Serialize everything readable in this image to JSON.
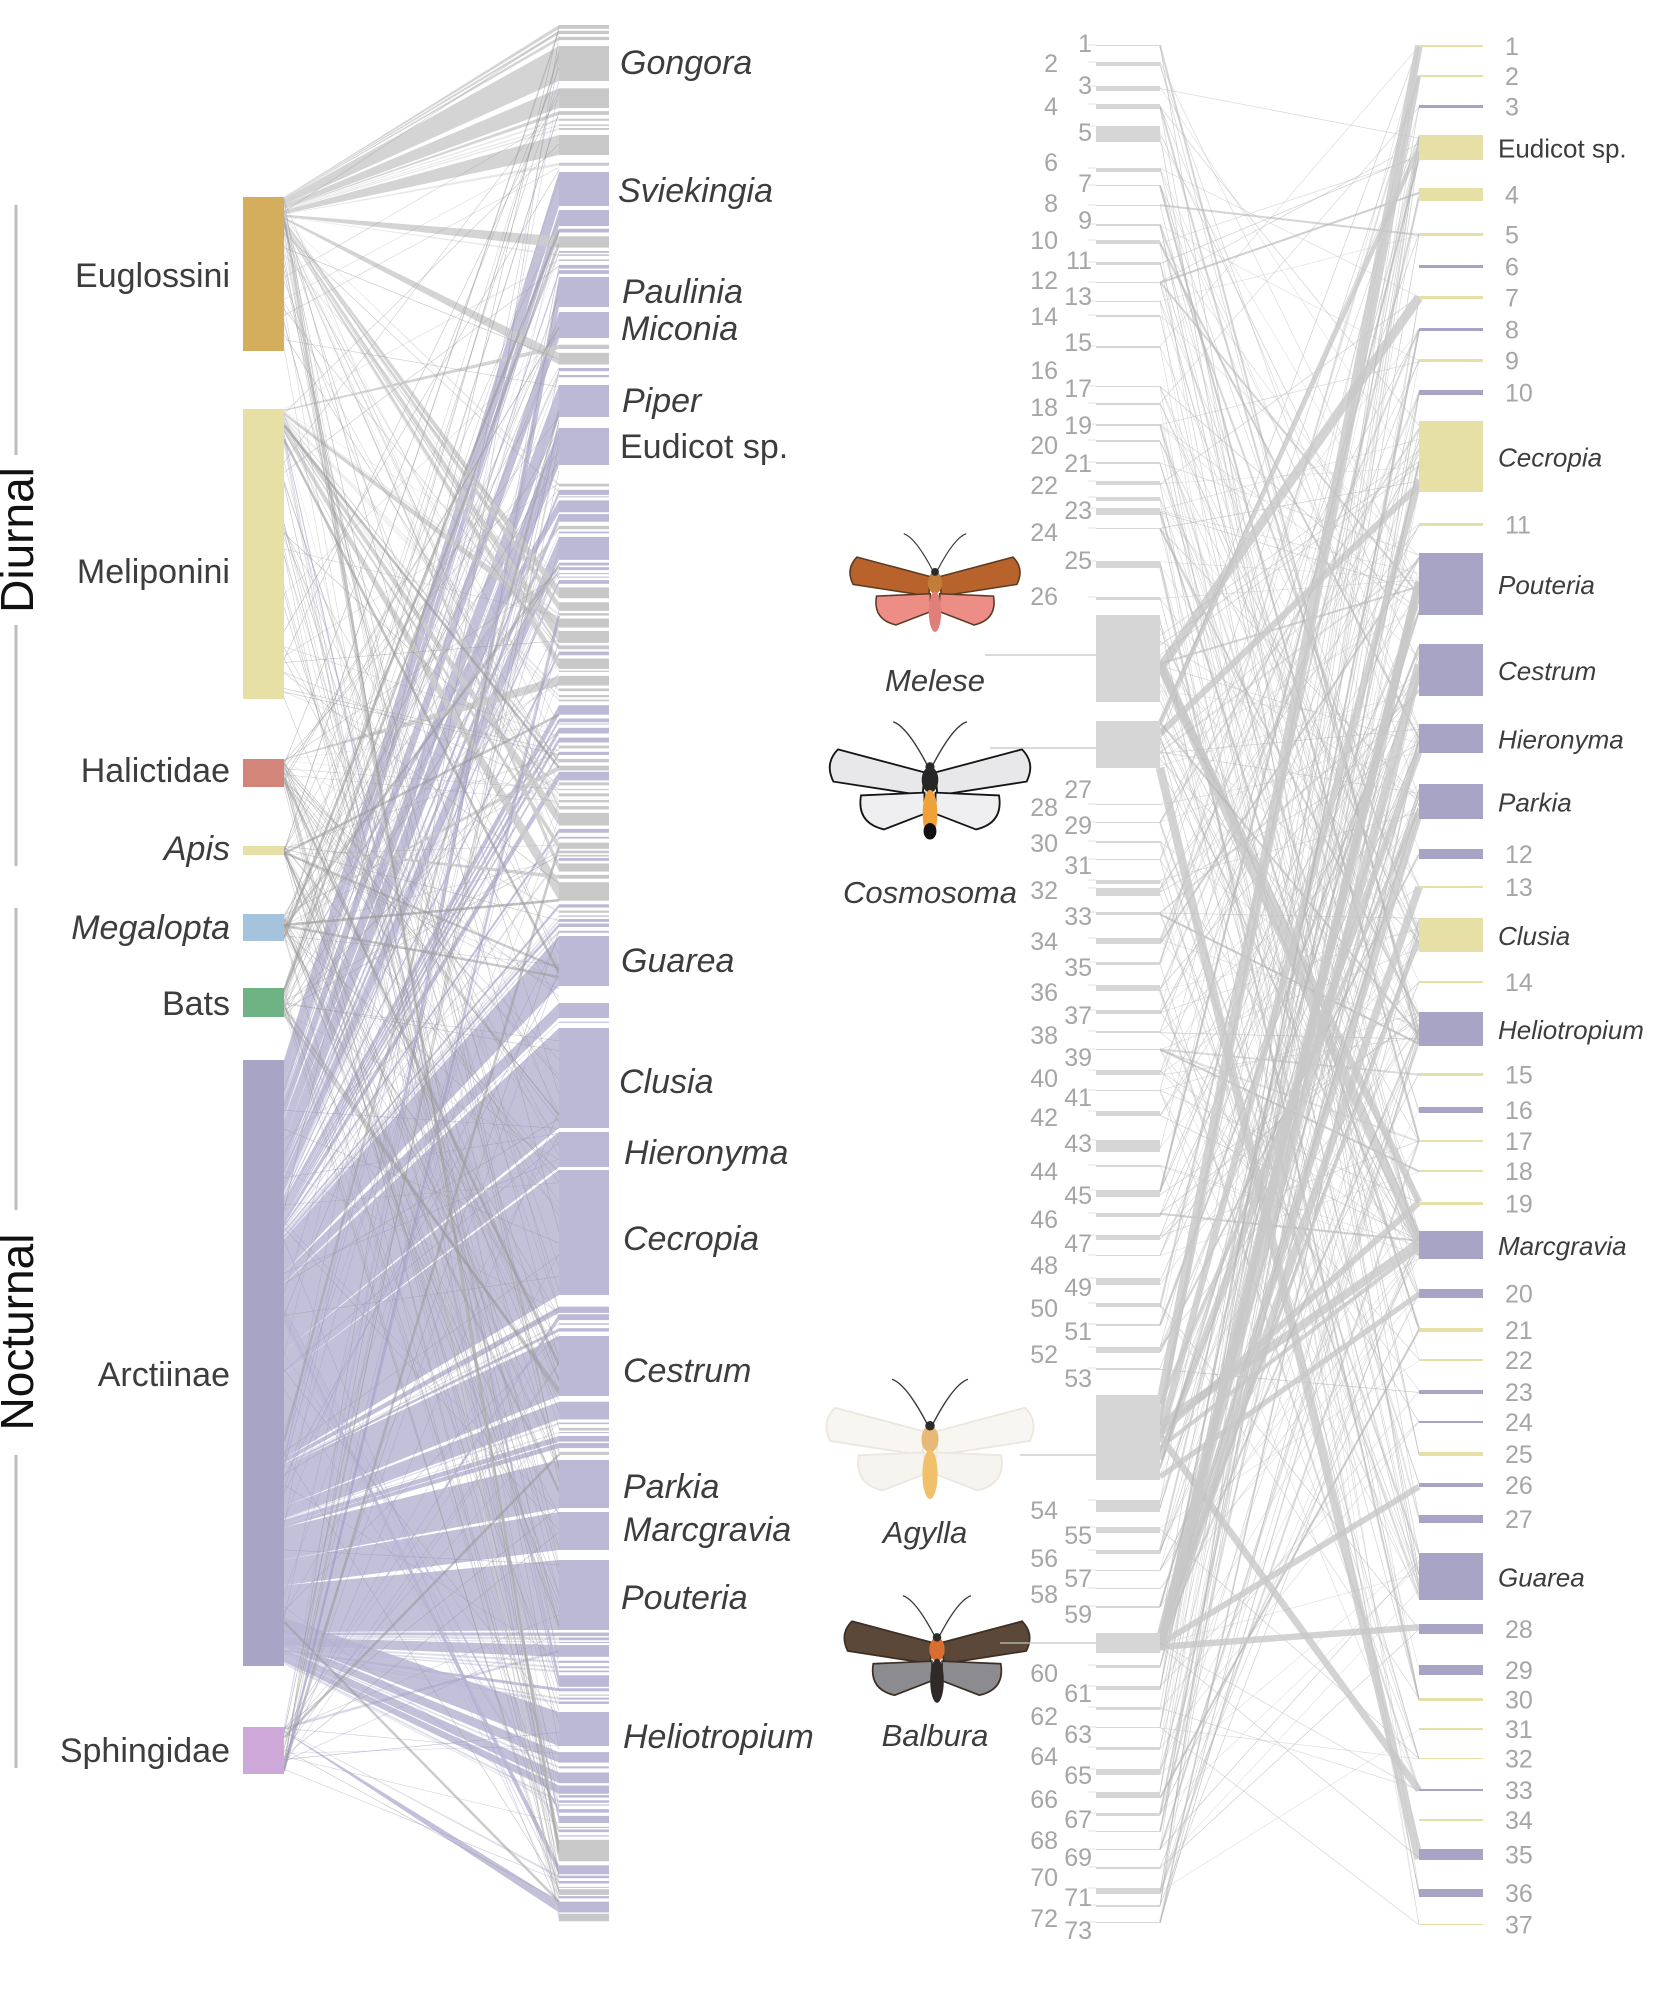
{
  "colors": {
    "euglossini": "#d4ae5c",
    "meliponini": "#e6dfa6",
    "halictidae": "#d4857a",
    "apis": "#e6dfa6",
    "megalopta": "#a5c3dc",
    "bats": "#6fb284",
    "arctiinae": "#a8a4c6",
    "sphingidae": "#cfa8da",
    "link_gray": "#cccccc",
    "link_purple": "#b8b5d3",
    "plant_gray": "#c8c8c8",
    "plant_purple": "#bcb9d6",
    "moth_node": "#d6d6d6",
    "label_dark": "#3d3d3d",
    "number_gray": "#a6a6a6"
  },
  "left_network": {
    "activity_groups": [
      {
        "label": "Diurnal",
        "members": [
          "Euglossini",
          "Meliponini",
          "Halictidae",
          "Apis"
        ]
      },
      {
        "label": "Nocturnal",
        "members": [
          "Megalopta",
          "Bats",
          "Arctiinae",
          "Sphingidae"
        ]
      }
    ],
    "pollinator_groups": [
      {
        "label": "Euglossini",
        "italic": false,
        "color_key": "euglossini",
        "relative_size": 0.095
      },
      {
        "label": "Meliponini",
        "italic": false,
        "color_key": "meliponini",
        "relative_size": 0.18
      },
      {
        "label": "Halictidae",
        "italic": false,
        "color_key": "halictidae",
        "relative_size": 0.014
      },
      {
        "label": "Apis",
        "italic": true,
        "color_key": "apis",
        "relative_size": 0.004
      },
      {
        "label": "Megalopta",
        "italic": true,
        "color_key": "megalopta",
        "relative_size": 0.013
      },
      {
        "label": "Bats",
        "italic": false,
        "color_key": "bats",
        "relative_size": 0.013
      },
      {
        "label": "Arctiinae",
        "italic": false,
        "color_key": "arctiinae",
        "relative_size": 0.295
      },
      {
        "label": "Sphingidae",
        "italic": false,
        "color_key": "sphingidae",
        "relative_size": 0.022
      }
    ],
    "plant_labels": [
      {
        "label": "Gongora",
        "italic": true
      },
      {
        "label": "Sviekingia",
        "italic": true
      },
      {
        "label": "Paulinia",
        "italic": true
      },
      {
        "label": "Miconia",
        "italic": true
      },
      {
        "label": "Piper",
        "italic": true
      },
      {
        "label": "Eudicot sp.",
        "italic": false
      },
      {
        "label": "Guarea",
        "italic": true
      },
      {
        "label": "Clusia",
        "italic": true
      },
      {
        "label": "Hieronyma",
        "italic": true
      },
      {
        "label": "Cecropia",
        "italic": true
      },
      {
        "label": "Cestrum",
        "italic": true
      },
      {
        "label": "Parkia",
        "italic": true
      },
      {
        "label": "Marcgravia",
        "italic": true
      },
      {
        "label": "Pouteria",
        "italic": true
      },
      {
        "label": "Heliotropium",
        "italic": true
      }
    ]
  },
  "right_network": {
    "moth_images": [
      {
        "label": "Melese",
        "italic": true
      },
      {
        "label": "Cosmosoma",
        "italic": true
      },
      {
        "label": "Agylla",
        "italic": true
      },
      {
        "label": "Balbura",
        "italic": true
      }
    ],
    "moth_numbered_count": 73,
    "plant_nodes": [
      {
        "label": "1",
        "named": false,
        "color": "yellow",
        "weight": 1
      },
      {
        "label": "2",
        "named": false,
        "color": "yellow",
        "weight": 1
      },
      {
        "label": "3",
        "named": false,
        "color": "purple",
        "weight": 2
      },
      {
        "label": "Eudicot sp.",
        "named": true,
        "italic": false,
        "color": "yellow",
        "weight": 24
      },
      {
        "label": "4",
        "named": false,
        "color": "yellow",
        "weight": 12
      },
      {
        "label": "5",
        "named": false,
        "color": "yellow",
        "weight": 2
      },
      {
        "label": "6",
        "named": false,
        "color": "purple",
        "weight": 2
      },
      {
        "label": "7",
        "named": false,
        "color": "yellow",
        "weight": 2
      },
      {
        "label": "8",
        "named": false,
        "color": "purple",
        "weight": 2
      },
      {
        "label": "9",
        "named": false,
        "color": "yellow",
        "weight": 2
      },
      {
        "label": "10",
        "named": false,
        "color": "purple",
        "weight": 4
      },
      {
        "label": "Cecropia",
        "named": true,
        "italic": true,
        "color": "yellow",
        "weight": 70
      },
      {
        "label": "11",
        "named": false,
        "color": "yellow",
        "weight": 2
      },
      {
        "label": "Pouteria",
        "named": true,
        "italic": true,
        "color": "purple",
        "weight": 61
      },
      {
        "label": "Cestrum",
        "named": true,
        "italic": true,
        "color": "purple",
        "weight": 51
      },
      {
        "label": "Hieronyma",
        "named": true,
        "italic": true,
        "color": "purple",
        "weight": 28
      },
      {
        "label": "Parkia",
        "named": true,
        "italic": true,
        "color": "purple",
        "weight": 34
      },
      {
        "label": "12",
        "named": false,
        "color": "purple",
        "weight": 10
      },
      {
        "label": "13",
        "named": false,
        "color": "yellow",
        "weight": 1
      },
      {
        "label": "Clusia",
        "named": true,
        "italic": true,
        "color": "yellow",
        "weight": 33
      },
      {
        "label": "14",
        "named": false,
        "color": "yellow",
        "weight": 1
      },
      {
        "label": "Heliotropium",
        "named": true,
        "italic": true,
        "color": "purple",
        "weight": 33
      },
      {
        "label": "15",
        "named": false,
        "color": "yellow",
        "weight": 2
      },
      {
        "label": "16",
        "named": false,
        "color": "purple",
        "weight": 4
      },
      {
        "label": "17",
        "named": false,
        "color": "yellow",
        "weight": 1
      },
      {
        "label": "18",
        "named": false,
        "color": "yellow",
        "weight": 1
      },
      {
        "label": "19",
        "named": false,
        "color": "yellow",
        "weight": 2
      },
      {
        "label": "Marcgravia",
        "named": true,
        "italic": true,
        "color": "purple",
        "weight": 28
      },
      {
        "label": "20",
        "named": false,
        "color": "purple",
        "weight": 8
      },
      {
        "label": "21",
        "named": false,
        "color": "yellow",
        "weight": 3
      },
      {
        "label": "22",
        "named": false,
        "color": "yellow",
        "weight": 1
      },
      {
        "label": "23",
        "named": false,
        "color": "purple",
        "weight": 3
      },
      {
        "label": "24",
        "named": false,
        "color": "purple",
        "weight": 1
      },
      {
        "label": "25",
        "named": false,
        "color": "yellow",
        "weight": 2
      },
      {
        "label": "26",
        "named": false,
        "color": "purple",
        "weight": 3
      },
      {
        "label": "27",
        "named": false,
        "color": "purple",
        "weight": 7
      },
      {
        "label": "Guarea",
        "named": true,
        "italic": true,
        "color": "purple",
        "weight": 46
      },
      {
        "label": "28",
        "named": false,
        "color": "purple",
        "weight": 10
      },
      {
        "label": "29",
        "named": false,
        "color": "purple",
        "weight": 9
      },
      {
        "label": "30",
        "named": false,
        "color": "yellow",
        "weight": 2
      },
      {
        "label": "31",
        "named": false,
        "color": "yellow",
        "weight": 1
      },
      {
        "label": "32",
        "named": false,
        "color": "yellow",
        "weight": 1
      },
      {
        "label": "33",
        "named": false,
        "color": "purple",
        "weight": 2
      },
      {
        "label": "34",
        "named": false,
        "color": "yellow",
        "weight": 1
      },
      {
        "label": "35",
        "named": false,
        "color": "purple",
        "weight": 11
      },
      {
        "label": "36",
        "named": false,
        "color": "purple",
        "weight": 8
      },
      {
        "label": "37",
        "named": false,
        "color": "yellow",
        "weight": 1
      }
    ]
  }
}
